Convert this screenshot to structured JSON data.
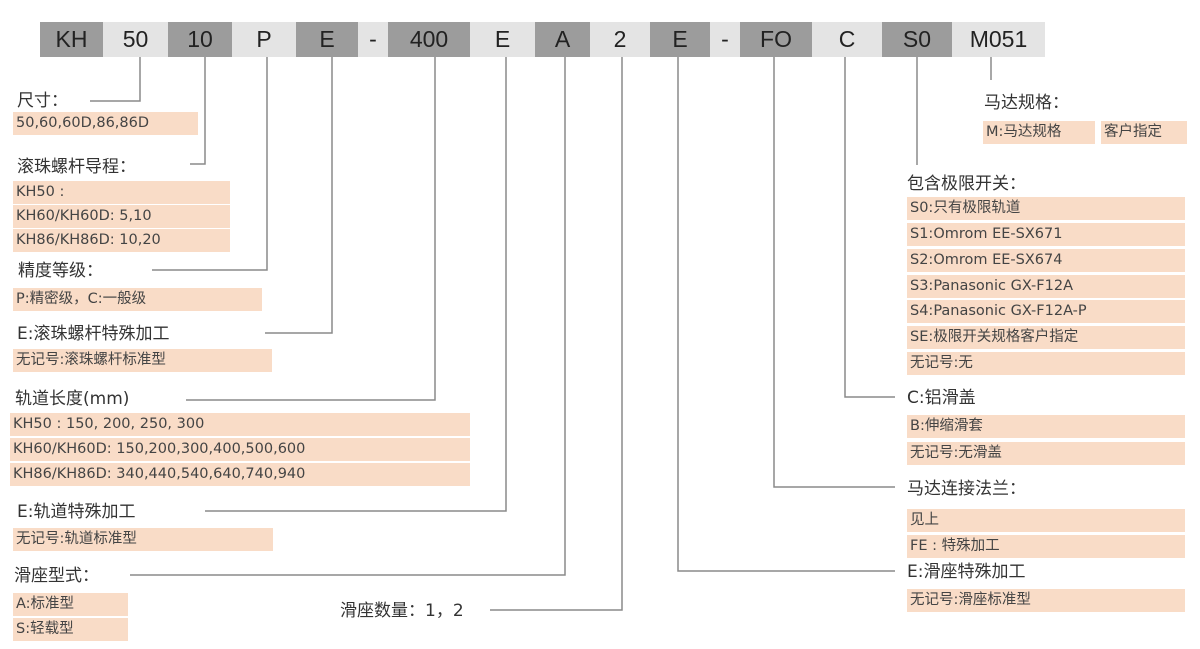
{
  "code_segments": [
    {
      "text": "KH",
      "shade": "dark"
    },
    {
      "text": "50",
      "shade": "light"
    },
    {
      "text": "10",
      "shade": "dark"
    },
    {
      "text": "P",
      "shade": "light"
    },
    {
      "text": "E",
      "shade": "dark"
    },
    {
      "text": "-",
      "shade": "light"
    },
    {
      "text": "400",
      "shade": "dark"
    },
    {
      "text": "E",
      "shade": "light"
    },
    {
      "text": "A",
      "shade": "dark"
    },
    {
      "text": "2",
      "shade": "light"
    },
    {
      "text": "E",
      "shade": "dark"
    },
    {
      "text": "-",
      "shade": "light"
    },
    {
      "text": "FO",
      "shade": "dark"
    },
    {
      "text": "C",
      "shade": "light"
    },
    {
      "text": "S0",
      "shade": "dark"
    },
    {
      "text": "M051",
      "shade": "light"
    }
  ],
  "colors": {
    "dark": "#9c9c9c",
    "light": "#e4e4e4",
    "highlight": "#f9dcc7",
    "line": "#8a8a8a"
  },
  "left": {
    "size": {
      "label": "尺寸：",
      "rows": [
        "50,60,60D,86,86D"
      ]
    },
    "lead": {
      "label": "滚珠螺杆导程：",
      "rows": [
        "KH50 :",
        "KH60/KH60D: 5,10",
        "KH86/KH86D: 10,20"
      ]
    },
    "precision": {
      "label": "精度等级：",
      "rows": [
        "P:精密级，C:一般级"
      ]
    },
    "screw_special": {
      "label": "E:滚珠螺杆特殊加工",
      "rows": [
        "无记号:滚珠螺杆标准型"
      ]
    },
    "rail_length": {
      "label": "轨道长度(mm)",
      "rows": [
        "KH50 : 150, 200, 250, 300",
        "KH60/KH60D: 150,200,300,400,500,600",
        "KH86/KH86D: 340,440,540,640,740,940"
      ]
    },
    "rail_special": {
      "label": "E:轨道特殊加工",
      "rows": [
        "无记号:轨道标准型"
      ]
    },
    "slider_type": {
      "label": "滑座型式：",
      "rows": [
        "A:标准型",
        "S:轻载型"
      ]
    },
    "slider_count": {
      "label": "滑座数量：1，2"
    }
  },
  "right": {
    "motor_spec": {
      "label": "马达规格：",
      "rows": [
        "M:马达规格",
        "客户指定"
      ]
    },
    "limit_switch": {
      "label": "包含极限开关：",
      "rows": [
        "S0:只有极限轨道",
        "S1:Omrom EE-SX671",
        "S2:Omrom EE-SX674",
        "S3:Panasonic GX-F12A",
        "S4:Panasonic GX-F12A-P",
        "SE:极限开关规格客户指定",
        "无记号:无"
      ]
    },
    "cover": {
      "label": "C:铝滑盖",
      "rows": [
        "B:伸缩滑套",
        "无记号:无滑盖"
      ]
    },
    "flange": {
      "label": "马达连接法兰：",
      "rows": [
        "见上",
        "FE : 特殊加工"
      ]
    },
    "slider_special": {
      "label": "E:滑座特殊加工",
      "rows": [
        "无记号:滑座标准型"
      ]
    }
  }
}
